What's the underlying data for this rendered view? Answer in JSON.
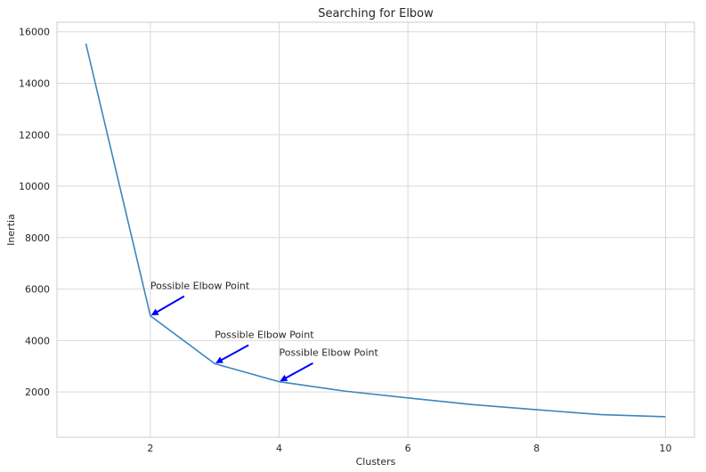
{
  "chart_data": {
    "type": "line",
    "title": "Searching for Elbow",
    "xlabel": "Clusters",
    "ylabel": "Inertia",
    "xlim": [
      0.55,
      10.45
    ],
    "ylim": [
      240,
      16370
    ],
    "xticks": [
      2,
      4,
      6,
      8,
      10
    ],
    "yticks": [
      2000,
      4000,
      6000,
      8000,
      10000,
      12000,
      14000,
      16000
    ],
    "grid": true,
    "legend": "none",
    "x": [
      1,
      2,
      3,
      4,
      5,
      6,
      7,
      8,
      9,
      10
    ],
    "y": [
      15540,
      4960,
      3100,
      2400,
      2040,
      1770,
      1510,
      1310,
      1120,
      1040
    ],
    "line_color": "#3a86be",
    "annotations": [
      {
        "text": "Possible Elbow Point",
        "xy": [
          2,
          4960
        ],
        "xytext": [
          2,
          6000
        ],
        "arrow_color": "#0000ff"
      },
      {
        "text": "Possible Elbow Point",
        "xy": [
          3,
          3100
        ],
        "xytext": [
          3,
          4100
        ],
        "arrow_color": "#0000ff"
      },
      {
        "text": "Possible Elbow Point",
        "xy": [
          4,
          2400
        ],
        "xytext": [
          4,
          3400
        ],
        "arrow_color": "#0000ff"
      }
    ]
  }
}
